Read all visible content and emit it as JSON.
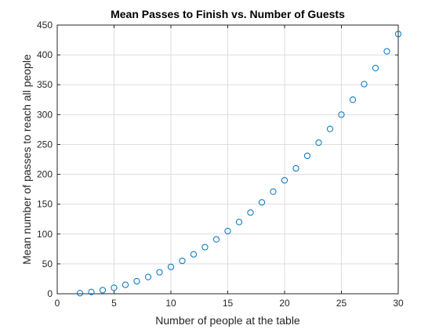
{
  "chart_data": {
    "type": "scatter",
    "title": "Mean Passes to Finish vs. Number of Guests",
    "xlabel": "Number of people at the table",
    "ylabel": "Mean number of passes to reach all people",
    "xlim": [
      0,
      30
    ],
    "ylim": [
      0,
      450
    ],
    "xticks": [
      0,
      5,
      10,
      15,
      20,
      25,
      30
    ],
    "yticks": [
      0,
      50,
      100,
      150,
      200,
      250,
      300,
      350,
      400,
      450
    ],
    "grid": true,
    "marker": "circle",
    "marker_color": "#0072BD",
    "x": [
      2,
      3,
      4,
      5,
      6,
      7,
      8,
      9,
      10,
      11,
      12,
      13,
      14,
      15,
      16,
      17,
      18,
      19,
      20,
      21,
      22,
      23,
      24,
      25,
      26,
      27,
      28,
      29,
      30
    ],
    "y": [
      1,
      3,
      6,
      10,
      15,
      21,
      28,
      36,
      45,
      55,
      66,
      78,
      91,
      105,
      120,
      136,
      153,
      171,
      190,
      210,
      231,
      253,
      276,
      300,
      325,
      351,
      378,
      406,
      435
    ]
  }
}
